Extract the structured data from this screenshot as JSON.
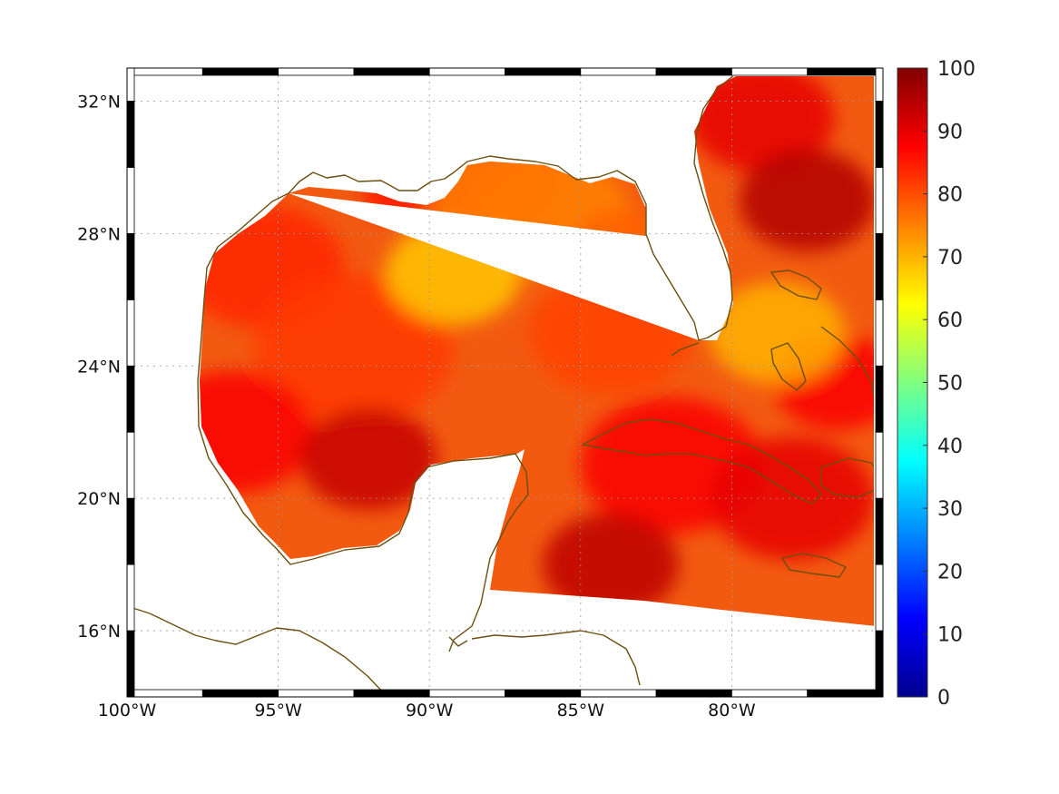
{
  "map": {
    "lon_range": [
      -100,
      -75
    ],
    "lat_range": [
      14,
      33
    ],
    "lon_ticks": [
      {
        "value": -100,
        "label": "100°W"
      },
      {
        "value": -95,
        "label": "95°W"
      },
      {
        "value": -90,
        "label": "90°W"
      },
      {
        "value": -85,
        "label": "85°W"
      },
      {
        "value": -80,
        "label": "80°W"
      }
    ],
    "lat_ticks": [
      {
        "value": 32,
        "label": "32°N"
      },
      {
        "value": 28,
        "label": "28°N"
      },
      {
        "value": 24,
        "label": "24°N"
      },
      {
        "value": 20,
        "label": "20°N"
      },
      {
        "value": 16,
        "label": "16°N"
      }
    ],
    "grid": "dotted",
    "colormap": "jet",
    "coastline_color": "#6b4f10",
    "land_color": "#ffffff"
  },
  "colorbar": {
    "min": 0,
    "max": 100,
    "ticks": [
      {
        "value": 0,
        "label": "0"
      },
      {
        "value": 10,
        "label": "10"
      },
      {
        "value": 20,
        "label": "20"
      },
      {
        "value": 30,
        "label": "30"
      },
      {
        "value": 40,
        "label": "40"
      },
      {
        "value": 50,
        "label": "50"
      },
      {
        "value": 60,
        "label": "60"
      },
      {
        "value": 70,
        "label": "70"
      },
      {
        "value": 80,
        "label": "80"
      },
      {
        "value": 90,
        "label": "90"
      },
      {
        "value": 100,
        "label": "100"
      }
    ],
    "stops": [
      "#00008f",
      "#0000ff",
      "#0080ff",
      "#00ffff",
      "#80ff80",
      "#ffff00",
      "#ff8000",
      "#ff0000",
      "#800000"
    ]
  },
  "field": {
    "typical_range": [
      75,
      95
    ],
    "features": [
      {
        "name": "central-gulf-low",
        "lon": -89.2,
        "lat": 26.8,
        "value": 68
      },
      {
        "name": "mississippi-plume",
        "lon": -88.0,
        "lat": 29.6,
        "value": 76
      },
      {
        "name": "southwest-gulf-high",
        "lon": -92.0,
        "lat": 21.2,
        "value": 93
      },
      {
        "name": "atlantic-high",
        "lon": -77.5,
        "lat": 29.0,
        "value": 95
      },
      {
        "name": "caribbean-high",
        "lon": -84.0,
        "lat": 18.0,
        "value": 94
      },
      {
        "name": "bahamas-low",
        "lon": -78.5,
        "lat": 25.0,
        "value": 70
      }
    ]
  }
}
